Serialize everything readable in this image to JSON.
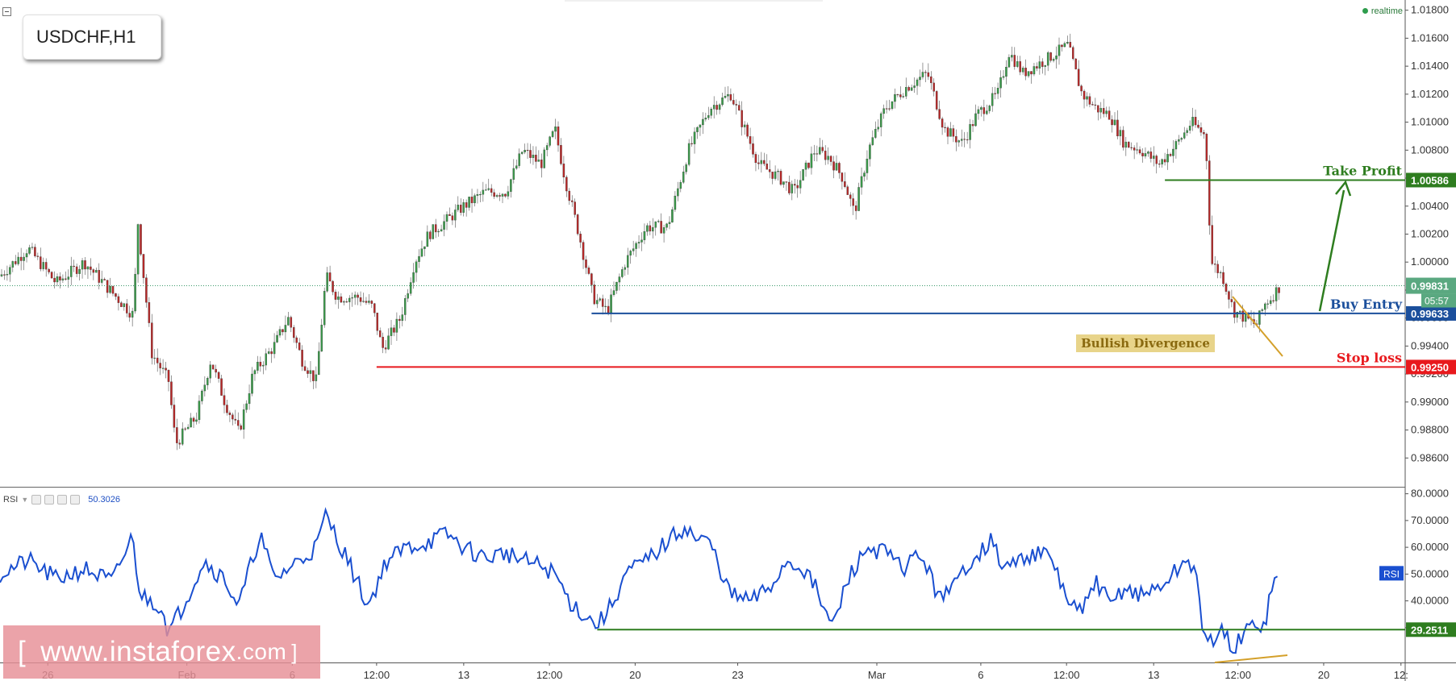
{
  "header": {
    "symbol": "USDCHF,H1",
    "realtime_label": "realtime"
  },
  "indicator": {
    "name": "RSI",
    "value": "50.3026",
    "badge": "RSI"
  },
  "watermark": {
    "bracket_open": "[",
    "text": "www.instaforex",
    "domain": ".com",
    "bracket_close": "]"
  },
  "chart_data": [
    {
      "type": "candlestick",
      "instrument": "USDCHF,H1",
      "ylim": [
        0.984,
        1.0185
      ],
      "y_ticks": [
        "1.01800",
        "1.01600",
        "1.01400",
        "1.01200",
        "1.01000",
        "1.00800",
        "1.00600",
        "1.00400",
        "1.00200",
        "1.00000",
        "0.99800",
        "0.99600",
        "0.99400",
        "0.99200",
        "0.99000",
        "0.98800",
        "0.98600"
      ],
      "x_ticks": [
        {
          "label": "26",
          "x": 0.034
        },
        {
          "label": "Feb",
          "x": 0.133
        },
        {
          "label": "6",
          "x": 0.208
        },
        {
          "label": "12:00",
          "x": 0.268
        },
        {
          "label": "13",
          "x": 0.33
        },
        {
          "label": "12:00",
          "x": 0.391
        },
        {
          "label": "20",
          "x": 0.452
        },
        {
          "label": "23",
          "x": 0.525
        },
        {
          "label": "Mar",
          "x": 0.624
        },
        {
          "label": "6",
          "x": 0.698
        },
        {
          "label": "12:00",
          "x": 0.759
        },
        {
          "label": "13",
          "x": 0.821
        },
        {
          "label": "12:00",
          "x": 0.881
        },
        {
          "label": "20",
          "x": 0.942
        },
        {
          "label": "12:",
          "x": 0.997
        }
      ],
      "price_path": [
        [
          0.0,
          0.999
        ],
        [
          0.02,
          1.001
        ],
        [
          0.04,
          0.9985
        ],
        [
          0.06,
          1.0
        ],
        [
          0.08,
          0.9978
        ],
        [
          0.095,
          0.9962
        ],
        [
          0.098,
          1.003
        ],
        [
          0.108,
          0.9935
        ],
        [
          0.12,
          0.9915
        ],
        [
          0.125,
          0.987
        ],
        [
          0.14,
          0.989
        ],
        [
          0.15,
          0.993
        ],
        [
          0.16,
          0.99
        ],
        [
          0.17,
          0.9878
        ],
        [
          0.18,
          0.992
        ],
        [
          0.195,
          0.994
        ],
        [
          0.205,
          0.996
        ],
        [
          0.215,
          0.993
        ],
        [
          0.225,
          0.9915
        ],
        [
          0.232,
          0.999
        ],
        [
          0.24,
          0.9975
        ],
        [
          0.255,
          0.9975
        ],
        [
          0.265,
          0.9968
        ],
        [
          0.272,
          0.9938
        ],
        [
          0.285,
          0.996
        ],
        [
          0.295,
          1.0
        ],
        [
          0.305,
          1.002
        ],
        [
          0.318,
          1.003
        ],
        [
          0.33,
          1.004
        ],
        [
          0.345,
          1.005
        ],
        [
          0.36,
          1.005
        ],
        [
          0.372,
          1.008
        ],
        [
          0.385,
          1.007
        ],
        [
          0.395,
          1.0095
        ],
        [
          0.402,
          1.006
        ],
        [
          0.412,
          1.002
        ],
        [
          0.422,
          0.9975
        ],
        [
          0.432,
          0.9965
        ],
        [
          0.445,
          1.0
        ],
        [
          0.46,
          1.0025
        ],
        [
          0.475,
          1.0025
        ],
        [
          0.49,
          1.008
        ],
        [
          0.505,
          1.011
        ],
        [
          0.52,
          1.012
        ],
        [
          0.53,
          1.0095
        ],
        [
          0.54,
          1.007
        ],
        [
          0.555,
          1.006
        ],
        [
          0.565,
          1.005
        ],
        [
          0.58,
          1.008
        ],
        [
          0.59,
          1.0075
        ],
        [
          0.6,
          1.006
        ],
        [
          0.608,
          1.0035
        ],
        [
          0.618,
          1.008
        ],
        [
          0.63,
          1.011
        ],
        [
          0.645,
          1.0125
        ],
        [
          0.66,
          1.0135
        ],
        [
          0.672,
          1.0095
        ],
        [
          0.685,
          1.0085
        ],
        [
          0.695,
          1.0105
        ],
        [
          0.71,
          1.012
        ],
        [
          0.718,
          1.015
        ],
        [
          0.728,
          1.0135
        ],
        [
          0.745,
          1.0145
        ],
        [
          0.76,
          1.0155
        ],
        [
          0.77,
          1.012
        ],
        [
          0.78,
          1.011
        ],
        [
          0.79,
          1.0105
        ],
        [
          0.8,
          1.0085
        ],
        [
          0.812,
          1.008
        ],
        [
          0.825,
          1.007
        ],
        [
          0.838,
          1.0085
        ],
        [
          0.848,
          1.01
        ],
        [
          0.858,
          1.009
        ],
        [
          0.862,
          1.0
        ],
        [
          0.87,
          0.999
        ],
        [
          0.878,
          0.9965
        ],
        [
          0.886,
          0.996
        ],
        [
          0.894,
          0.9955
        ],
        [
          0.9,
          0.997
        ],
        [
          0.905,
          0.9975
        ],
        [
          0.911,
          0.9983
        ]
      ],
      "current_price": {
        "value": "0.99831",
        "countdown": "05:57"
      },
      "levels": [
        {
          "name": "Take Profit",
          "value": 1.00586,
          "label": "1.00586",
          "color": "#2e7d1f"
        },
        {
          "name": "Buy Entry",
          "value": 0.99633,
          "label": "0.99633",
          "color": "#1b4f9c"
        },
        {
          "name": "Stop loss",
          "value": 0.9925,
          "label": "0.99250",
          "color": "#e8191d"
        }
      ],
      "annotations": [
        {
          "text": "Bullish Divergence",
          "bg": "#e8d48a",
          "color": "#8a6a10"
        }
      ]
    },
    {
      "type": "line",
      "indicator": "RSI",
      "ylim": [
        17,
        82
      ],
      "y_ticks": [
        "80.0000",
        "70.0000",
        "60.0000",
        "50.0000",
        "40.0000",
        "30.0000"
      ],
      "level": {
        "value": 29.2511,
        "label": "29.2511",
        "color": "#2e7d1f"
      },
      "path": [
        [
          0.0,
          50
        ],
        [
          0.02,
          55
        ],
        [
          0.04,
          48
        ],
        [
          0.06,
          52
        ],
        [
          0.08,
          47
        ],
        [
          0.094,
          64
        ],
        [
          0.1,
          42
        ],
        [
          0.115,
          38
        ],
        [
          0.12,
          28
        ],
        [
          0.13,
          38
        ],
        [
          0.145,
          55
        ],
        [
          0.16,
          48
        ],
        [
          0.17,
          38
        ],
        [
          0.185,
          65
        ],
        [
          0.195,
          48
        ],
        [
          0.21,
          54
        ],
        [
          0.225,
          60
        ],
        [
          0.232,
          72
        ],
        [
          0.245,
          58
        ],
        [
          0.262,
          38
        ],
        [
          0.275,
          55
        ],
        [
          0.29,
          60
        ],
        [
          0.305,
          62
        ],
        [
          0.318,
          65
        ],
        [
          0.33,
          60
        ],
        [
          0.345,
          56
        ],
        [
          0.36,
          58
        ],
        [
          0.372,
          55
        ],
        [
          0.385,
          53
        ],
        [
          0.395,
          50
        ],
        [
          0.405,
          40
        ],
        [
          0.415,
          35
        ],
        [
          0.425,
          31
        ],
        [
          0.435,
          38
        ],
        [
          0.445,
          50
        ],
        [
          0.46,
          55
        ],
        [
          0.475,
          62
        ],
        [
          0.488,
          68
        ],
        [
          0.495,
          63
        ],
        [
          0.505,
          62
        ],
        [
          0.52,
          42
        ],
        [
          0.535,
          40
        ],
        [
          0.548,
          45
        ],
        [
          0.56,
          55
        ],
        [
          0.572,
          52
        ],
        [
          0.58,
          45
        ],
        [
          0.592,
          30
        ],
        [
          0.605,
          50
        ],
        [
          0.618,
          60
        ],
        [
          0.63,
          58
        ],
        [
          0.642,
          52
        ],
        [
          0.655,
          58
        ],
        [
          0.665,
          45
        ],
        [
          0.675,
          42
        ],
        [
          0.69,
          55
        ],
        [
          0.705,
          62
        ],
        [
          0.715,
          52
        ],
        [
          0.725,
          55
        ],
        [
          0.735,
          58
        ],
        [
          0.748,
          56
        ],
        [
          0.76,
          40
        ],
        [
          0.77,
          35
        ],
        [
          0.78,
          48
        ],
        [
          0.79,
          38
        ],
        [
          0.8,
          45
        ],
        [
          0.812,
          42
        ],
        [
          0.825,
          45
        ],
        [
          0.835,
          50
        ],
        [
          0.845,
          55
        ],
        [
          0.852,
          51
        ],
        [
          0.856,
          24
        ],
        [
          0.862,
          26
        ],
        [
          0.87,
          28
        ],
        [
          0.878,
          22
        ],
        [
          0.886,
          28
        ],
        [
          0.894,
          32
        ],
        [
          0.9,
          31
        ],
        [
          0.905,
          45
        ],
        [
          0.911,
          50
        ]
      ]
    }
  ]
}
